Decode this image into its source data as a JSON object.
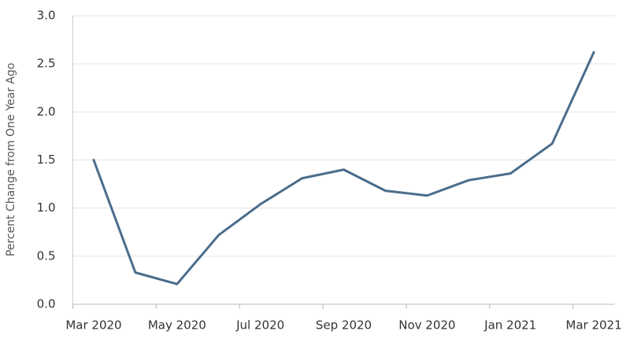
{
  "chart_data": {
    "type": "line",
    "y_label": "Percent Change from One Year Ago",
    "categories": [
      "Mar 2020",
      null,
      "May 2020",
      null,
      "Jul 2020",
      null,
      "Sep 2020",
      null,
      "Nov 2020",
      null,
      "Jan 2021",
      null,
      "Mar 2021"
    ],
    "values": [
      1.5,
      0.33,
      0.21,
      0.72,
      1.04,
      1.31,
      1.4,
      1.18,
      1.13,
      1.29,
      1.36,
      1.67,
      2.62
    ],
    "color": "#4a6d8c",
    "ylim": [
      0,
      3
    ],
    "yticks": [
      {
        "value": 0,
        "label": "0.0"
      },
      0.5,
      {
        "value": 1,
        "label": "1.0"
      },
      1.5,
      {
        "value": 2,
        "label": "2.0"
      },
      2.5,
      {
        "value": 3,
        "label": "3.0"
      }
    ],
    "grid": true
  }
}
